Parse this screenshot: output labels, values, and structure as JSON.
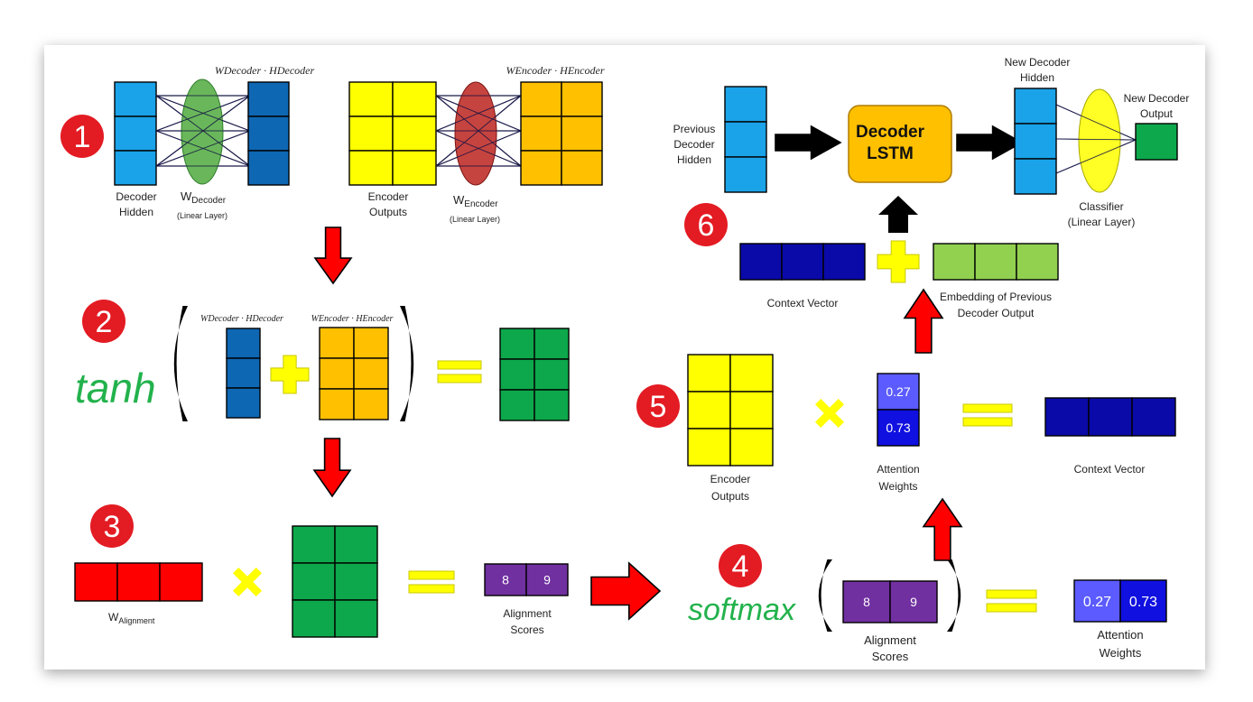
{
  "colors": {
    "blue": "#1aa3e8",
    "dark_blue": "#0e67b3",
    "yellow": "#ffff00",
    "orange": "#ffc000",
    "green": "#0da84b",
    "light_green": "#92d050",
    "navy": "#0a0aa8",
    "red": "#ff0000",
    "purple": "#7030a0",
    "attn_light": "#5b5bff",
    "attn_dark": "#1010e0",
    "badge": "#e31b23",
    "tanh_green": "#22b24c"
  },
  "steps": [
    "1",
    "2",
    "3",
    "4",
    "5",
    "6"
  ],
  "step1": {
    "decoder_hidden_label": [
      "Decoder",
      "Hidden"
    ],
    "w_decoder_main": "W",
    "w_decoder_sub": "Decoder",
    "w_decoder_linear": "(Linear Layer)",
    "w_decoder_product": "WDecoder · HDecoder",
    "encoder_outputs_label": [
      "Encoder",
      "Outputs"
    ],
    "w_encoder_main": "W",
    "w_encoder_sub": "Encoder",
    "w_encoder_linear": "(Linear Layer)",
    "w_encoder_product": "WEncoder · HEncoder"
  },
  "step2": {
    "tanh_text": "tanh",
    "decoder_product": "WDecoder · HDecoder",
    "encoder_product": "WEncoder · HEncoder"
  },
  "step3": {
    "w_alignment_main": "W",
    "w_alignment_sub": "Alignment",
    "scores": [
      "8",
      "9"
    ],
    "scores_label": [
      "Alignment",
      "Scores"
    ]
  },
  "step4": {
    "softmax_text": "softmax",
    "scores": [
      "8",
      "9"
    ],
    "scores_label": [
      "Alignment",
      "Scores"
    ],
    "weights": [
      "0.27",
      "0.73"
    ],
    "weights_label": [
      "Attention",
      "Weights"
    ]
  },
  "step5": {
    "encoder_outputs_label": [
      "Encoder",
      "Outputs"
    ],
    "weights": [
      "0.27",
      "0.73"
    ],
    "weights_label": [
      "Attention",
      "Weights"
    ],
    "context_label": "Context Vector"
  },
  "step6": {
    "prev_hidden_label": [
      "Previous",
      "Decoder",
      "Hidden"
    ],
    "lstm_label": [
      "Decoder",
      "LSTM"
    ],
    "new_hidden_label": [
      "New Decoder",
      "Hidden"
    ],
    "new_output_label": [
      "New Decoder",
      "Output"
    ],
    "classifier_label": [
      "Classifier",
      "(Linear Layer)"
    ],
    "context_label": "Context Vector",
    "embedding_label": [
      "Embedding of Previous",
      "Decoder Output"
    ]
  }
}
